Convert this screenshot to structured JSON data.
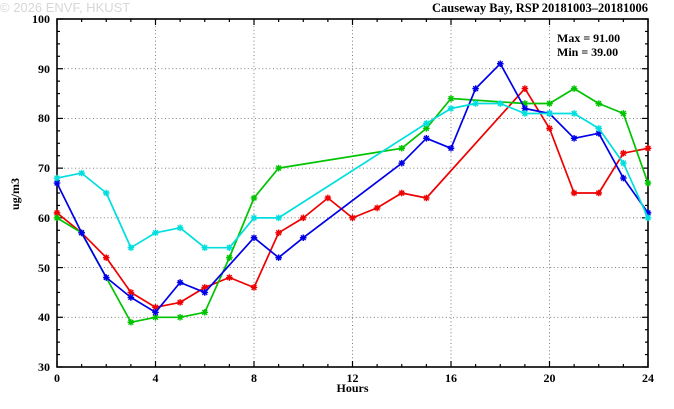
{
  "header": {
    "title": "Causeway Bay, RSP 20181003–20181006"
  },
  "annotations": {
    "max_label": "Max = 91.00",
    "min_label": "Min = 39.00"
  },
  "watermark": "© 2026 ENVF, HKUST",
  "chart_data": {
    "type": "line",
    "title": "Causeway Bay, RSP 20181003–20181006",
    "xlabel": "Hours",
    "ylabel": "ug/m3",
    "xlim": [
      0,
      24
    ],
    "ylim": [
      30,
      100
    ],
    "x_major_ticks": [
      0,
      4,
      8,
      12,
      16,
      20,
      24
    ],
    "y_major_ticks": [
      30,
      40,
      50,
      60,
      70,
      80,
      90,
      100
    ],
    "x_minor_step": 1,
    "y_minor_step": 2.5,
    "grid_x": [
      4,
      8,
      12,
      16,
      20
    ],
    "grid_y": [
      40,
      50,
      60,
      70,
      80,
      90
    ],
    "grid_style": "dotted",
    "legend": "none",
    "stats": {
      "max": 91.0,
      "min": 39.0
    },
    "series": [
      {
        "name": "red",
        "color": "#ee0000",
        "points": [
          [
            0,
            61
          ],
          [
            1,
            57
          ],
          [
            2,
            52
          ],
          [
            3,
            45
          ],
          [
            4,
            42
          ],
          [
            5,
            43
          ],
          [
            6,
            46
          ],
          [
            7,
            48
          ],
          [
            8,
            46
          ],
          [
            9,
            57
          ],
          [
            10,
            60
          ],
          [
            11,
            64
          ],
          [
            12,
            60
          ],
          [
            13,
            62
          ],
          [
            14,
            65
          ],
          [
            15,
            64
          ],
          [
            19,
            86
          ],
          [
            20,
            78
          ],
          [
            21,
            65
          ],
          [
            22,
            65
          ],
          [
            23,
            73
          ],
          [
            24,
            74
          ]
        ]
      },
      {
        "name": "green",
        "color": "#00c400",
        "points": [
          [
            0,
            60
          ],
          [
            1,
            57
          ],
          [
            3,
            39
          ],
          [
            4,
            40
          ],
          [
            5,
            40
          ],
          [
            6,
            41
          ],
          [
            7,
            52
          ],
          [
            8,
            64
          ],
          [
            9,
            70
          ],
          [
            14,
            74
          ],
          [
            15,
            78
          ],
          [
            16,
            84
          ],
          [
            19,
            83
          ],
          [
            20,
            83
          ],
          [
            21,
            86
          ],
          [
            22,
            83
          ],
          [
            23,
            81
          ],
          [
            24,
            67
          ]
        ]
      },
      {
        "name": "blue",
        "color": "#0000e8",
        "points": [
          [
            0,
            67
          ],
          [
            1,
            57
          ],
          [
            2,
            48
          ],
          [
            3,
            44
          ],
          [
            4,
            41
          ],
          [
            5,
            47
          ],
          [
            6,
            45
          ],
          [
            8,
            56
          ],
          [
            9,
            52
          ],
          [
            10,
            56
          ],
          [
            14,
            71
          ],
          [
            15,
            76
          ],
          [
            16,
            74
          ],
          [
            17,
            86
          ],
          [
            18,
            91
          ],
          [
            19,
            82
          ],
          [
            20,
            81
          ],
          [
            21,
            76
          ],
          [
            22,
            77
          ],
          [
            23,
            68
          ],
          [
            24,
            61
          ]
        ]
      },
      {
        "name": "cyan",
        "color": "#00dede",
        "points": [
          [
            0,
            68
          ],
          [
            1,
            69
          ],
          [
            2,
            65
          ],
          [
            3,
            54
          ],
          [
            4,
            57
          ],
          [
            5,
            58
          ],
          [
            6,
            54
          ],
          [
            7,
            54
          ],
          [
            8,
            60
          ],
          [
            9,
            60
          ],
          [
            15,
            79
          ],
          [
            16,
            82
          ],
          [
            17,
            83
          ],
          [
            18,
            83
          ],
          [
            19,
            81
          ],
          [
            20,
            81
          ],
          [
            21,
            81
          ],
          [
            22,
            78
          ],
          [
            23,
            71
          ],
          [
            24,
            60
          ]
        ]
      }
    ]
  }
}
